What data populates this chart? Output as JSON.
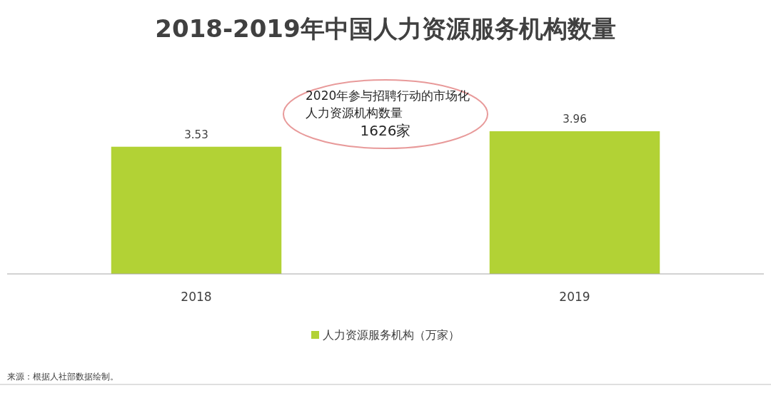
{
  "chart_data": {
    "type": "bar",
    "title": "2018-2019年中国人力资源服务机构数量",
    "categories": [
      "2018",
      "2019"
    ],
    "series": [
      {
        "name": "人力资源服务机构（万家）",
        "color": "#b2d235",
        "values": [
          3.53,
          3.96
        ]
      }
    ],
    "data_labels": true,
    "legend": "bottom",
    "annotations": [
      "2020年参与招聘行动的市场化人力资源机构数量",
      "1626家",
      "来源：根据人社部数据绘制。"
    ]
  }
}
